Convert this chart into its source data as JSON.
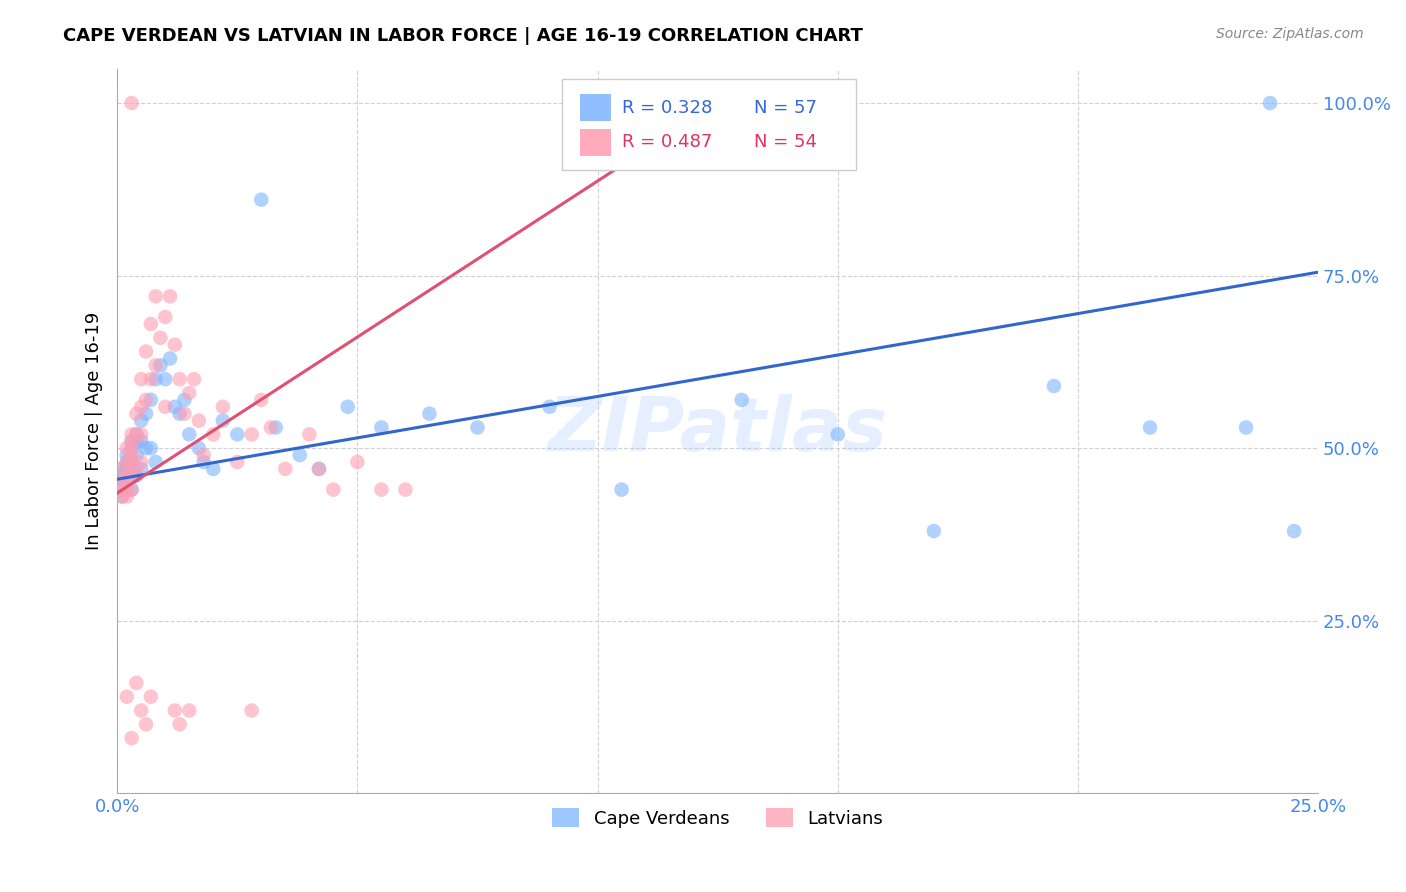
{
  "title": "CAPE VERDEAN VS LATVIAN IN LABOR FORCE | AGE 16-19 CORRELATION CHART",
  "source": "Source: ZipAtlas.com",
  "ylabel": "In Labor Force | Age 16-19",
  "xlim": [
    0.0,
    0.25
  ],
  "ylim": [
    0.0,
    1.05
  ],
  "xtick_vals": [
    0.0,
    0.05,
    0.1,
    0.15,
    0.2,
    0.25
  ],
  "ytick_vals": [
    0.0,
    0.25,
    0.5,
    0.75,
    1.0
  ],
  "ytick_labels": [
    "",
    "25.0%",
    "50.0%",
    "75.0%",
    "100.0%"
  ],
  "xtick_labels": [
    "0.0%",
    "",
    "",
    "",
    "",
    "25.0%"
  ],
  "watermark": "ZIPatlas",
  "blue_color": "#7EB3FF",
  "pink_color": "#FF9DB0",
  "blue_line_color": "#3366CC",
  "pink_line_color": "#E05070",
  "blue_scatter_x": [
    0.001,
    0.001,
    0.001,
    0.001,
    0.001,
    0.002,
    0.002,
    0.002,
    0.002,
    0.003,
    0.003,
    0.003,
    0.003,
    0.003,
    0.004,
    0.004,
    0.004,
    0.004,
    0.005,
    0.005,
    0.005,
    0.006,
    0.006,
    0.007,
    0.007,
    0.008,
    0.008,
    0.009,
    0.01,
    0.011,
    0.012,
    0.013,
    0.014,
    0.015,
    0.017,
    0.018,
    0.02,
    0.022,
    0.025,
    0.03,
    0.033,
    0.038,
    0.042,
    0.048,
    0.055,
    0.065,
    0.075,
    0.09,
    0.105,
    0.13,
    0.15,
    0.17,
    0.195,
    0.215,
    0.235,
    0.245,
    0.24
  ],
  "blue_scatter_y": [
    0.47,
    0.46,
    0.45,
    0.44,
    0.43,
    0.49,
    0.48,
    0.47,
    0.44,
    0.51,
    0.5,
    0.48,
    0.46,
    0.44,
    0.52,
    0.51,
    0.49,
    0.46,
    0.54,
    0.51,
    0.47,
    0.55,
    0.5,
    0.57,
    0.5,
    0.6,
    0.48,
    0.62,
    0.6,
    0.63,
    0.56,
    0.55,
    0.57,
    0.52,
    0.5,
    0.48,
    0.47,
    0.54,
    0.52,
    0.86,
    0.53,
    0.49,
    0.47,
    0.56,
    0.53,
    0.55,
    0.53,
    0.56,
    0.44,
    0.57,
    0.52,
    0.38,
    0.59,
    0.53,
    0.53,
    0.38,
    1.0
  ],
  "pink_scatter_x": [
    0.001,
    0.001,
    0.001,
    0.001,
    0.002,
    0.002,
    0.002,
    0.002,
    0.002,
    0.003,
    0.003,
    0.003,
    0.003,
    0.003,
    0.003,
    0.003,
    0.003,
    0.004,
    0.004,
    0.004,
    0.005,
    0.005,
    0.005,
    0.005,
    0.006,
    0.006,
    0.007,
    0.007,
    0.008,
    0.008,
    0.009,
    0.01,
    0.01,
    0.011,
    0.012,
    0.013,
    0.014,
    0.015,
    0.016,
    0.017,
    0.018,
    0.02,
    0.022,
    0.025,
    0.028,
    0.03,
    0.032,
    0.035,
    0.04,
    0.042,
    0.045,
    0.05,
    0.055,
    0.06
  ],
  "pink_scatter_y": [
    0.47,
    0.45,
    0.44,
    0.43,
    0.5,
    0.48,
    0.46,
    0.44,
    0.43,
    0.52,
    0.51,
    0.5,
    0.49,
    0.48,
    0.46,
    0.44,
    1.0,
    0.55,
    0.52,
    0.47,
    0.6,
    0.56,
    0.52,
    0.48,
    0.64,
    0.57,
    0.68,
    0.6,
    0.72,
    0.62,
    0.66,
    0.69,
    0.56,
    0.72,
    0.65,
    0.6,
    0.55,
    0.58,
    0.6,
    0.54,
    0.49,
    0.52,
    0.56,
    0.48,
    0.52,
    0.57,
    0.53,
    0.47,
    0.52,
    0.47,
    0.44,
    0.48,
    0.44,
    0.44
  ],
  "pink_low_x": [
    0.002,
    0.003,
    0.004,
    0.005,
    0.006,
    0.007,
    0.012,
    0.013,
    0.015,
    0.028
  ],
  "pink_low_y": [
    0.14,
    0.08,
    0.16,
    0.12,
    0.1,
    0.14,
    0.12,
    0.1,
    0.12,
    0.12
  ],
  "blue_line_x": [
    0.0,
    0.25
  ],
  "blue_line_y": [
    0.455,
    0.755
  ],
  "pink_line_x": [
    0.0,
    0.125
  ],
  "pink_line_y": [
    0.435,
    1.0
  ]
}
